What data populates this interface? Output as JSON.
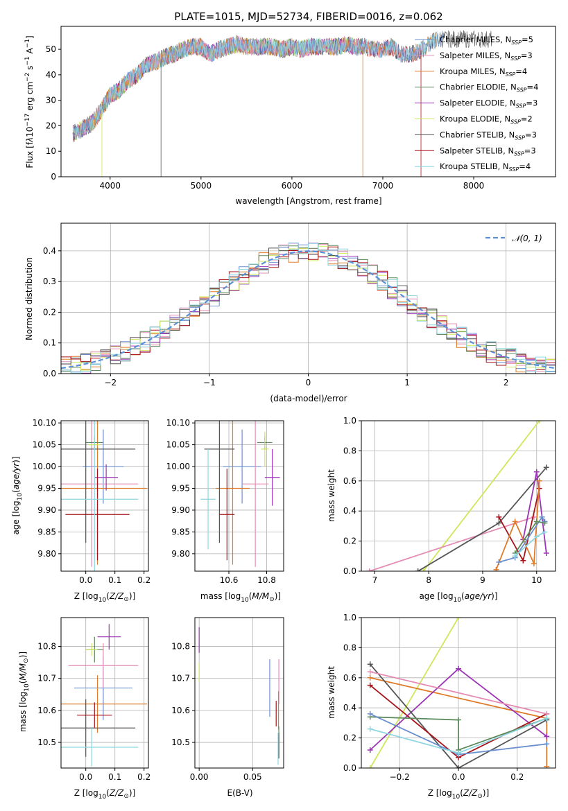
{
  "title": "PLATE=1015, MJD=52734, FIBERID=0016, z=0.062",
  "colors": {
    "chabrier_miles": "#6a8fce",
    "salpeter_miles": "#e58cb4",
    "kroupa_miles": "#e07b29",
    "chabrier_elodie": "#5e8a5e",
    "salpeter_elodie": "#9b34b5",
    "kroupa_elodie": "#cde85a",
    "chabrier_stelib": "#555555",
    "salpeter_stelib": "#a8141a",
    "kroupa_stelib": "#8fd6e0",
    "grid": "#b0b0b0",
    "normal": "#5b8fd6"
  },
  "legend": [
    {
      "text": "Chabrier MILES, N",
      "sub": "SSP",
      "tail": "=5",
      "color": "#6a8fce"
    },
    {
      "text": "Salpeter MILES, N",
      "sub": "SSP",
      "tail": "=3",
      "color": "#e58cb4"
    },
    {
      "text": "Kroupa MILES, N",
      "sub": "SSP",
      "tail": "=4",
      "color": "#e07b29"
    },
    {
      "text": "Chabrier ELODIE, N",
      "sub": "SSP",
      "tail": "=4",
      "color": "#5e8a5e"
    },
    {
      "text": "Salpeter ELODIE, N",
      "sub": "SSP",
      "tail": "=3",
      "color": "#9b34b5"
    },
    {
      "text": "Kroupa ELODIE, N",
      "sub": "SSP",
      "tail": "=2",
      "color": "#cde85a"
    },
    {
      "text": "Chabrier STELIB, N",
      "sub": "SSP",
      "tail": "=3",
      "color": "#555555"
    },
    {
      "text": "Salpeter STELIB, N",
      "sub": "SSP",
      "tail": "=3",
      "color": "#a8141a"
    },
    {
      "text": "Kroupa STELIB, N",
      "sub": "SSP",
      "tail": "=4",
      "color": "#8fd6e0"
    }
  ],
  "chart_data": [
    {
      "type": "line",
      "panel": "spectrum",
      "xlabel": "wavelength [Angstrom, rest frame]",
      "ylabel": "Flux [f",
      "ylabel_full": "Flux [fλ 10^-17 erg cm^-2 s^-1 A^-1]",
      "xlim": [
        3460,
        8900
      ],
      "ylim": [
        0,
        59
      ],
      "xticks": [
        "4000",
        "5000",
        "6000",
        "7000",
        "8000"
      ],
      "yticks": [
        "0",
        "10",
        "20",
        "30",
        "40",
        "50"
      ],
      "x": [
        3600,
        3700,
        3800,
        3900,
        4000,
        4100,
        4200,
        4300,
        4400,
        4500,
        4600,
        4700,
        4800,
        4900,
        5000,
        5100,
        5200,
        5300,
        5400,
        5500,
        5600,
        5700,
        5800,
        5900,
        6000,
        6100,
        6200,
        6300,
        6400,
        6500,
        6600,
        6700,
        6800,
        6900,
        7000,
        7100,
        7200,
        7300,
        7400,
        7500,
        7600
      ],
      "y": [
        17,
        19,
        21,
        26,
        32,
        34,
        38,
        40,
        44,
        45,
        47,
        48,
        50,
        51,
        51,
        48,
        50,
        51,
        52,
        51,
        51,
        51,
        51,
        50,
        51,
        50,
        51,
        51,
        51,
        51,
        52,
        51,
        51,
        50,
        50,
        51,
        48,
        48,
        49,
        52,
        54
      ]
    },
    {
      "type": "bar",
      "panel": "residual-histogram",
      "xlabel": "(data-model)/error",
      "ylabel": "Normed distribution",
      "xlim": [
        -2.5,
        2.5
      ],
      "ylim": [
        0,
        0.49
      ],
      "xticks": [
        "−2",
        "−1",
        "0",
        "1",
        "2"
      ],
      "yticks": [
        "0.0",
        "0.1",
        "0.2",
        "0.3",
        "0.4"
      ],
      "legend_label": "𝒩(0, 1)",
      "bins": [
        -2.5,
        -2.4,
        -2.3,
        -2.2,
        -2.1,
        -2.0,
        -1.9,
        -1.8,
        -1.7,
        -1.6,
        -1.5,
        -1.4,
        -1.3,
        -1.2,
        -1.1,
        -1.0,
        -0.9,
        -0.8,
        -0.7,
        -0.6,
        -0.5,
        -0.4,
        -0.3,
        -0.2,
        -0.1,
        0.0,
        0.1,
        0.2,
        0.3,
        0.4,
        0.5,
        0.6,
        0.7,
        0.8,
        0.9,
        1.0,
        1.1,
        1.2,
        1.3,
        1.4,
        1.5,
        1.6,
        1.7,
        1.8,
        1.9,
        2.0,
        2.1,
        2.2,
        2.3,
        2.4
      ]
    },
    {
      "type": "scatter",
      "panel": "age-vs-Z",
      "xlabel": "Z [log10(Z/Z☉)]",
      "ylabel": "age [log10(age/yr)]",
      "xlim": [
        -0.085,
        0.215
      ],
      "ylim": [
        9.76,
        10.105
      ],
      "xticks": [
        "0.0",
        "0.1",
        "0.2"
      ],
      "yticks": [
        "9.80",
        "9.85",
        "9.90",
        "9.95",
        "10.00",
        "10.05",
        "10.10"
      ],
      "points": [
        {
          "model": "chabrier_miles",
          "x": 0.06,
          "y": 10.0,
          "xerr": 0.07,
          "yerr": 0.085
        },
        {
          "model": "salpeter_miles",
          "x": 0.02,
          "y": 9.96,
          "xerr": 0.16,
          "yerr": 0.19
        },
        {
          "model": "kroupa_miles",
          "x": 0.04,
          "y": 9.95,
          "xerr": 0.17,
          "yerr": 0.175
        },
        {
          "model": "chabrier_elodie",
          "x": 0.03,
          "y": 10.055,
          "xerr": 0.03,
          "yerr": 0.015
        },
        {
          "model": "salpeter_elodie",
          "x": 0.07,
          "y": 9.975,
          "xerr": 0.04,
          "yerr": 0.03
        },
        {
          "model": "kroupa_elodie",
          "x": 0.03,
          "y": 10.05,
          "xerr": 0.02,
          "yerr": 0.02
        },
        {
          "model": "chabrier_stelib",
          "x": 0.0,
          "y": 10.04,
          "xerr": 0.17,
          "yerr": 0.215
        },
        {
          "model": "salpeter_stelib",
          "x": 0.04,
          "y": 9.89,
          "xerr": 0.11,
          "yerr": 0.105
        },
        {
          "model": "kroupa_stelib",
          "x": 0.03,
          "y": 9.925,
          "xerr": 0.15,
          "yerr": 0.2
        }
      ]
    },
    {
      "type": "scatter",
      "panel": "age-vs-mass",
      "xlabel": "mass [log10(M/M☉)]",
      "ylabel": "",
      "xlim": [
        10.42,
        10.89
      ],
      "ylim": [
        9.76,
        10.105
      ],
      "xticks": [
        "10.6",
        "10.8"
      ],
      "yticks": [
        "9.80",
        "9.85",
        "9.90",
        "9.95",
        "10.00",
        "10.05",
        "10.10"
      ],
      "points": [
        {
          "model": "chabrier_miles",
          "x": 10.67,
          "y": 10.0,
          "xerr": 0.1,
          "yerr": 0.085
        },
        {
          "model": "salpeter_miles",
          "x": 10.74,
          "y": 9.96,
          "xerr": 0.07,
          "yerr": 0.19
        },
        {
          "model": "kroupa_miles",
          "x": 10.62,
          "y": 9.95,
          "xerr": 0.09,
          "yerr": 0.175
        },
        {
          "model": "chabrier_elodie",
          "x": 10.79,
          "y": 10.055,
          "xerr": 0.04,
          "yerr": 0.015
        },
        {
          "model": "salpeter_elodie",
          "x": 10.83,
          "y": 9.975,
          "xerr": 0.04,
          "yerr": 0.065
        },
        {
          "model": "kroupa_elodie",
          "x": 10.79,
          "y": 10.04,
          "xerr": 0.02,
          "yerr": 0.04
        },
        {
          "model": "chabrier_stelib",
          "x": 10.55,
          "y": 10.04,
          "xerr": 0.08,
          "yerr": 0.215
        },
        {
          "model": "salpeter_stelib",
          "x": 10.59,
          "y": 9.89,
          "xerr": 0.04,
          "yerr": 0.105
        },
        {
          "model": "kroupa_stelib",
          "x": 10.49,
          "y": 9.925,
          "xerr": 0.04,
          "yerr": 0.115
        }
      ]
    },
    {
      "type": "line",
      "panel": "mass-weight-vs-age",
      "xlabel": "age [log10(age/yr)]",
      "ylabel": "mass weight",
      "xlim": [
        6.75,
        10.35
      ],
      "ylim": [
        0,
        1.0
      ],
      "xticks": [
        "7",
        "8",
        "9",
        "10"
      ],
      "yticks": [
        "0.0",
        "0.2",
        "0.4",
        "0.6",
        "0.8",
        "1.0"
      ],
      "series": [
        {
          "model": "kroupa_elodie",
          "x": [
            7.9,
            10.05
          ],
          "y": [
            0.0,
            1.0
          ]
        },
        {
          "model": "salpeter_miles",
          "x": [
            6.9,
            9.95
          ],
          "y": [
            0.0,
            0.36
          ]
        },
        {
          "model": "chabrier_stelib",
          "x": [
            7.8,
            9.3,
            10.18
          ],
          "y": [
            0.0,
            0.32,
            0.69
          ]
        },
        {
          "model": "salpeter_stelib",
          "x": [
            9.3,
            9.75,
            10.05
          ],
          "y": [
            0.36,
            0.07,
            0.55
          ]
        },
        {
          "model": "salpeter_elodie",
          "x": [
            9.75,
            10.0,
            10.18
          ],
          "y": [
            0.21,
            0.66,
            0.12
          ]
        },
        {
          "model": "kroupa_miles",
          "x": [
            9.25,
            9.6,
            9.95,
            10.05
          ],
          "y": [
            0.01,
            0.33,
            0.05,
            0.6
          ]
        },
        {
          "model": "chabrier_miles",
          "x": [
            9.3,
            9.6,
            10.1,
            10.15
          ],
          "y": [
            0.06,
            0.09,
            0.36,
            0.33
          ]
        },
        {
          "model": "chabrier_elodie",
          "x": [
            9.6,
            10.0,
            10.15
          ],
          "y": [
            0.12,
            0.33,
            0.32
          ]
        },
        {
          "model": "kroupa_stelib",
          "x": [
            9.6,
            10.0,
            10.15
          ],
          "y": [
            0.1,
            0.23,
            0.26
          ]
        }
      ]
    },
    {
      "type": "scatter",
      "panel": "mass-vs-Z",
      "xlabel": "Z [log10(Z/Z☉)]",
      "ylabel": "mass [log10(M/M☉)]",
      "xlim": [
        -0.085,
        0.215
      ],
      "ylim": [
        10.42,
        10.89
      ],
      "xticks": [
        "0.0",
        "0.1",
        "0.2"
      ],
      "yticks": [
        "10.5",
        "10.6",
        "10.7",
        "10.8"
      ],
      "points": [
        {
          "model": "chabrier_miles",
          "x": 0.06,
          "y": 10.67,
          "xerr": 0.1,
          "yerr": 0.1
        },
        {
          "model": "salpeter_miles",
          "x": 0.06,
          "y": 10.74,
          "xerr": 0.12,
          "yerr": 0.07
        },
        {
          "model": "kroupa_miles",
          "x": 0.04,
          "y": 10.62,
          "xerr": 0.17,
          "yerr": 0.09
        },
        {
          "model": "chabrier_elodie",
          "x": 0.03,
          "y": 10.79,
          "xerr": 0.03,
          "yerr": 0.04
        },
        {
          "model": "salpeter_elodie",
          "x": 0.08,
          "y": 10.83,
          "xerr": 0.04,
          "yerr": 0.04
        },
        {
          "model": "kroupa_elodie",
          "x": 0.02,
          "y": 10.79,
          "xerr": 0.02,
          "yerr": 0.02
        },
        {
          "model": "chabrier_stelib",
          "x": 0.0,
          "y": 10.545,
          "xerr": 0.17,
          "yerr": 0.09
        },
        {
          "model": "salpeter_stelib",
          "x": 0.03,
          "y": 10.585,
          "xerr": 0.06,
          "yerr": 0.04
        },
        {
          "model": "kroupa_stelib",
          "x": 0.02,
          "y": 10.485,
          "xerr": 0.16,
          "yerr": 0.06
        }
      ]
    },
    {
      "type": "scatter",
      "panel": "mass-vs-EBV",
      "xlabel": "E(B-V)",
      "ylabel": "",
      "xlim": [
        -0.004,
        0.079
      ],
      "ylim": [
        10.42,
        10.89
      ],
      "xticks": [
        "0.00",
        "0.05"
      ],
      "yticks": [
        "10.5",
        "10.6",
        "10.7",
        "10.8"
      ],
      "points": [
        {
          "model": "chabrier_miles",
          "x": 0.066,
          "y": 10.67,
          "yerr": 0.09
        },
        {
          "model": "salpeter_miles",
          "x": 0.0745,
          "y": 10.69,
          "yerr": 0.07
        },
        {
          "model": "kroupa_miles",
          "x": 0.0742,
          "y": 10.6,
          "yerr": 0.06
        },
        {
          "model": "chabrier_elodie",
          "x": 0.0745,
          "y": 10.5,
          "yerr": 0.05
        },
        {
          "model": "salpeter_elodie",
          "x": 0.0,
          "y": 10.82,
          "yerr": 0.04
        },
        {
          "model": "kroupa_elodie",
          "x": 0.0,
          "y": 10.72,
          "yerr": 0.03
        },
        {
          "model": "chabrier_stelib",
          "x": 0.0745,
          "y": 10.49,
          "yerr": 0.04
        },
        {
          "model": "salpeter_stelib",
          "x": 0.072,
          "y": 10.59,
          "yerr": 0.04
        },
        {
          "model": "kroupa_stelib",
          "x": 0.0738,
          "y": 10.48,
          "yerr": 0.05
        }
      ]
    },
    {
      "type": "line",
      "panel": "mass-weight-vs-Z",
      "xlabel": "Z [log10(Z/Z☉)]",
      "ylabel": "mass weight",
      "xlim": [
        -0.33,
        0.33
      ],
      "ylim": [
        0,
        1.0
      ],
      "xticks": [
        "−0.2",
        "0.0",
        "0.2"
      ],
      "yticks": [
        "0.0",
        "0.2",
        "0.4",
        "0.6",
        "0.8",
        "1.0"
      ],
      "series": [
        {
          "model": "kroupa_elodie",
          "x": [
            -0.3,
            0.0
          ],
          "y": [
            0.0,
            1.0
          ]
        },
        {
          "model": "kroupa_miles",
          "x": [
            -0.3,
            0.3,
            0.3
          ],
          "y": [
            0.6,
            0.33,
            0.01
          ]
        },
        {
          "model": "salpeter_elodie",
          "x": [
            -0.3,
            0.0,
            0.3
          ],
          "y": [
            0.12,
            0.66,
            0.21
          ]
        },
        {
          "model": "chabrier_stelib",
          "x": [
            -0.3,
            0.0,
            0.3
          ],
          "y": [
            0.69,
            0.0,
            0.32
          ]
        },
        {
          "model": "salpeter_stelib",
          "x": [
            -0.3,
            0.0,
            0.3
          ],
          "y": [
            0.55,
            0.07,
            0.36
          ]
        },
        {
          "model": "salpeter_miles",
          "x": [
            -0.3,
            0.3
          ],
          "y": [
            0.64,
            0.36
          ]
        },
        {
          "model": "chabrier_elodie",
          "x": [
            -0.3,
            0.0,
            0.0,
            0.3
          ],
          "y": [
            0.34,
            0.32,
            0.12,
            0.33
          ]
        },
        {
          "model": "chabrier_miles",
          "x": [
            -0.3,
            0.0,
            0.3
          ],
          "y": [
            0.36,
            0.09,
            0.16
          ]
        },
        {
          "model": "kroupa_stelib",
          "x": [
            -0.3,
            0.0,
            0.3
          ],
          "y": [
            0.26,
            0.1,
            0.33
          ]
        }
      ]
    }
  ]
}
